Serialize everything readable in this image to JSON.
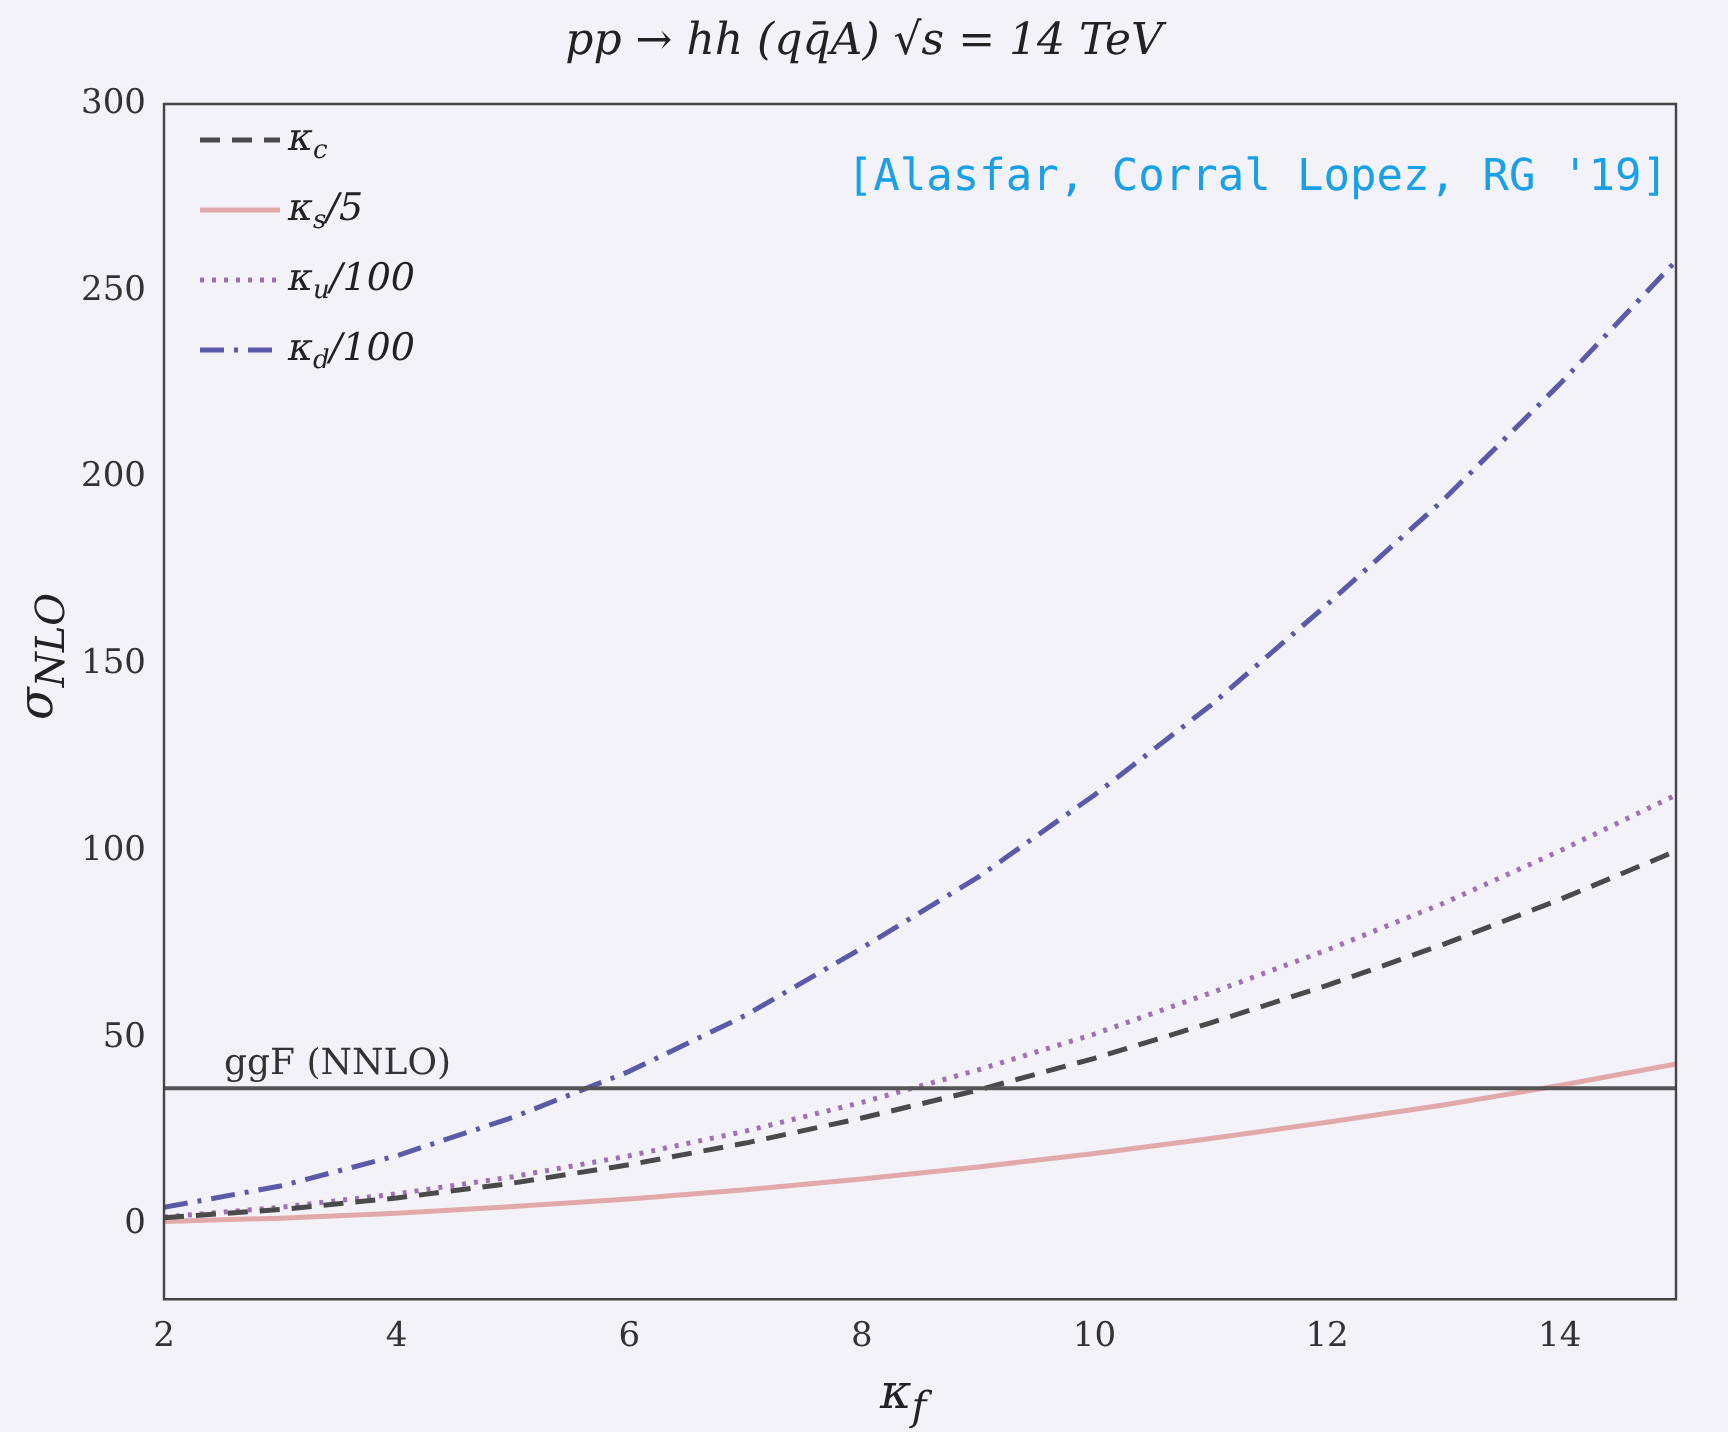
{
  "chart_data": {
    "type": "line",
    "title": "pp → hh (qq̄A)  √s = 14 TeV",
    "xlabel": "κ$_{f}$",
    "ylabel": "σ$_{NLO}$",
    "x": [
      2,
      3,
      4,
      5,
      6,
      7,
      8,
      9,
      10,
      11,
      12,
      13,
      14,
      15
    ],
    "series": [
      {
        "name": "κ$_{c}$",
        "color": "#4a4a4a",
        "line_style": "dashed",
        "values": [
          1.8,
          4,
          7.1,
          11.1,
          16,
          21.8,
          28.5,
          36,
          44.5,
          54,
          64,
          75,
          87,
          100
        ]
      },
      {
        "name": "κ$_{s}$/5",
        "color": "#e2a9a9",
        "line_style": "solid",
        "values": [
          0.8,
          1.7,
          3,
          4.8,
          6.8,
          9.3,
          12.2,
          15.4,
          19,
          23,
          27.4,
          32,
          37.2,
          43
        ]
      },
      {
        "name": "κ$_{u}$/100",
        "color": "#a070b4",
        "line_style": "dotted",
        "values": [
          2,
          4.6,
          8.2,
          12.8,
          18.4,
          25,
          32.7,
          41.4,
          51,
          62,
          73.5,
          86,
          100,
          115
        ]
      },
      {
        "name": "κ$_{d}$/100",
        "color": "#5a5aa8",
        "line_style": "dashdot",
        "values": [
          4.6,
          10.3,
          18.4,
          28.7,
          41,
          56,
          74,
          93,
          115,
          139,
          166,
          194,
          225,
          258
        ]
      }
    ],
    "xlim": [
      2,
      15
    ],
    "xticks": [
      2,
      4,
      6,
      8,
      10,
      12,
      14
    ],
    "ylim": [
      -20,
      300
    ],
    "yticks": [
      0,
      50,
      100,
      150,
      200,
      250,
      300
    ],
    "ref_lines": [
      {
        "axis": "y",
        "value": 36.5,
        "label": "ggF (NNLO)",
        "color": "#555555",
        "line_style": "solid"
      }
    ],
    "annotations": [
      "[Alasfar, Corral Lopez, RG '19]"
    ],
    "legend": "top left",
    "grid": false,
    "marker": "none"
  }
}
